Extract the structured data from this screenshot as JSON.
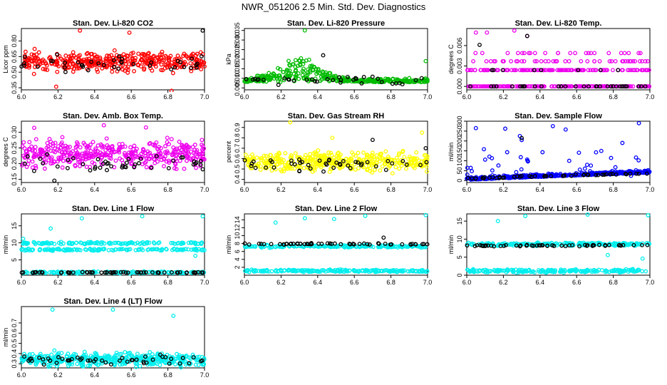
{
  "figure": {
    "title": "NWR_051206  2.5 Min. Std. Dev. Diagnostics"
  },
  "chart_data": [
    {
      "type": "scatter",
      "title": "Stan. Dev. Li-820 CO2",
      "ylabel": "Licor ppm",
      "xlim": [
        6.0,
        7.0
      ],
      "ylim": [
        0.33,
        0.92
      ],
      "xticks": [
        "6.0",
        "6.2",
        "6.4",
        "6.6",
        "6.8",
        "7.0"
      ],
      "yticks": [
        "0.35",
        "0.50",
        "0.65",
        "0.80"
      ],
      "color": "#ff0000",
      "series": [
        {
          "name": "all",
          "pattern": "band",
          "n": 400,
          "seed": 11,
          "base": 0.6,
          "spread": 0.13,
          "outliers": [
            [
              6.32,
              0.9
            ],
            [
              6.59,
              0.88
            ],
            [
              6.82,
              0.32
            ],
            [
              6.19,
              0.36
            ]
          ]
        },
        {
          "name": "highlighted",
          "pattern": "band",
          "n": 40,
          "seed": 12,
          "base": 0.58,
          "spread": 0.12,
          "dark": true,
          "outliers": [
            [
              6.99,
              0.9
            ]
          ]
        }
      ]
    },
    {
      "type": "scatter",
      "title": "Stan. Dev. Li-820 Pressure",
      "ylabel": "kPa",
      "xlim": [
        6.0,
        7.0
      ],
      "ylim": [
        0.004,
        0.036
      ],
      "xticks": [
        "6.0",
        "6.2",
        "6.4",
        "6.6",
        "6.8",
        "7.0"
      ],
      "yticks": [
        "0.005",
        "0.010",
        "0.015",
        "0.020",
        "0.025",
        "0.030",
        "0.035"
      ],
      "color": "#00bb00",
      "series": [
        {
          "name": "all",
          "pattern": "hump",
          "n": 380,
          "seed": 21,
          "base": 0.008,
          "peak": 0.012,
          "center": 6.3,
          "width": 0.16,
          "spread": 0.005,
          "outliers": [
            [
              6.33,
              0.035
            ],
            [
              6.99,
              0.019
            ]
          ]
        },
        {
          "name": "highlighted",
          "pattern": "band",
          "n": 35,
          "seed": 22,
          "base": 0.009,
          "spread": 0.003,
          "dark": true,
          "outliers": [
            [
              6.43,
              0.022
            ]
          ]
        }
      ]
    },
    {
      "type": "scatter",
      "title": "Stan. Dev. Li-820 Temp.",
      "ylabel": "degrees C",
      "xlim": [
        6.0,
        7.0
      ],
      "ylim": [
        -0.0005,
        0.0085
      ],
      "xticks": [
        "6.0",
        "6.2",
        "6.4",
        "6.6",
        "6.8",
        "7.0"
      ],
      "yticks": [
        "0.000",
        "0.003",
        "0.006"
      ],
      "color": "#ee00ee",
      "series": [
        {
          "name": "all",
          "pattern": "levels",
          "n": 420,
          "seed": 31,
          "levels": [
            0.0,
            0.0024,
            0.0037,
            0.0049
          ],
          "weights": [
            0.5,
            0.32,
            0.12,
            0.06
          ],
          "outliers": [
            [
              6.26,
              0.0082
            ],
            [
              6.33,
              0.0074
            ],
            [
              6.05,
              0.0079
            ],
            [
              6.11,
              0.0079
            ]
          ]
        },
        {
          "name": "highlighted",
          "pattern": "levels",
          "n": 40,
          "seed": 32,
          "levels": [
            0.0,
            0.0024
          ],
          "weights": [
            0.75,
            0.25
          ],
          "dark": true,
          "outliers": [
            [
              6.33,
              0.0074
            ],
            [
              6.07,
              0.0061
            ]
          ]
        }
      ]
    },
    {
      "type": "scatter",
      "title": "Stan. Dev. Amb. Box Temp.",
      "ylabel": "degrees C",
      "xlim": [
        6.0,
        7.0
      ],
      "ylim": [
        0.14,
        0.335
      ],
      "xticks": [
        "6.0",
        "6.2",
        "6.4",
        "6.6",
        "6.8",
        "7.0"
      ],
      "yticks": [
        "0.15",
        "0.20",
        "0.25",
        "0.30"
      ],
      "color": "#ee00ee",
      "series": [
        {
          "name": "all",
          "pattern": "band",
          "n": 420,
          "seed": 41,
          "base": 0.23,
          "spread": 0.06,
          "outliers": [
            [
              6.45,
              0.322
            ],
            [
              6.07,
              0.314
            ],
            [
              6.68,
              0.315
            ]
          ]
        },
        {
          "name": "highlighted",
          "pattern": "band",
          "n": 45,
          "seed": 42,
          "base": 0.2,
          "spread": 0.035,
          "dark": true,
          "outliers": [
            [
              6.18,
              0.146
            ]
          ]
        }
      ]
    },
    {
      "type": "scatter",
      "title": "Stan. Dev. Gas Stream RH",
      "ylabel": "percent",
      "xlim": [
        6.0,
        7.0
      ],
      "ylim": [
        0.37,
        0.96
      ],
      "xticks": [
        "6.0",
        "6.2",
        "6.4",
        "6.6",
        "6.8",
        "7.0"
      ],
      "yticks": [
        "0.4",
        "0.5",
        "0.6",
        "0.7",
        "0.8",
        "0.9"
      ],
      "color": "#ffff00",
      "series": [
        {
          "name": "all",
          "pattern": "band",
          "n": 420,
          "seed": 51,
          "base": 0.57,
          "spread": 0.13,
          "outliers": [
            [
              6.25,
              0.95
            ],
            [
              6.97,
              0.85
            ],
            [
              6.48,
              0.8
            ]
          ]
        },
        {
          "name": "highlighted",
          "pattern": "band",
          "n": 45,
          "seed": 52,
          "base": 0.55,
          "spread": 0.09,
          "dark": true,
          "outliers": [
            [
              6.7,
              0.78
            ],
            [
              6.99,
              0.7
            ]
          ]
        }
      ]
    },
    {
      "type": "scatter",
      "title": "Stan. Dev. Sample Flow",
      "ylabel": "ml/min",
      "xlim": [
        6.0,
        7.0
      ],
      "ylim": [
        -10,
        300
      ],
      "xticks": [
        "6.0",
        "6.2",
        "6.4",
        "6.6",
        "6.8",
        "7.0"
      ],
      "yticks": [
        "0",
        "50",
        "100",
        "150",
        "200",
        "250",
        "300"
      ],
      "color": "#0000ff",
      "series": [
        {
          "name": "all",
          "pattern": "ramp",
          "n": 420,
          "seed": 61,
          "from": 4,
          "to": 40,
          "spread": 16,
          "sparse": 40,
          "sparseMax": 140,
          "outliers": [
            [
              6.05,
              265
            ],
            [
              6.21,
              262
            ],
            [
              6.29,
              225
            ],
            [
              6.47,
              275
            ],
            [
              6.54,
              258
            ],
            [
              6.94,
              290
            ],
            [
              6.85,
              190
            ],
            [
              6.3,
              205
            ]
          ]
        },
        {
          "name": "highlighted",
          "pattern": "ramp",
          "n": 50,
          "seed": 62,
          "from": 8,
          "to": 35,
          "spread": 10,
          "dark": true,
          "outliers": [
            [
              6.3,
              215
            ]
          ]
        }
      ]
    },
    {
      "type": "scatter",
      "title": "Stan. Dev. Line 1 Flow",
      "ylabel": "ml/min",
      "xlim": [
        6.0,
        7.0
      ],
      "ylim": [
        0.5,
        18.5
      ],
      "xticks": [
        "6.0",
        "6.2",
        "6.4",
        "6.6",
        "6.8",
        "7.0"
      ],
      "yticks": [
        "5",
        "10",
        "15"
      ],
      "color": "#00eeee",
      "series": [
        {
          "name": "all",
          "pattern": "stripes",
          "n": 420,
          "seed": 71,
          "levels": [
            8.0,
            9.9,
            1.3
          ],
          "spread": 0.45,
          "outliers": [
            [
              6.16,
              14.2
            ],
            [
              6.33,
              17.2
            ],
            [
              6.66,
              17.8
            ],
            [
              6.99,
              17.8
            ],
            [
              6.01,
              11.2
            ],
            [
              6.95,
              6.2
            ]
          ]
        },
        {
          "name": "highlighted",
          "pattern": "stripes",
          "n": 60,
          "seed": 72,
          "levels": [
            1.3
          ],
          "spread": 0.15,
          "dark": true,
          "outliers": []
        }
      ]
    },
    {
      "type": "scatter",
      "title": "Stan. Dev. Line 2 Flow",
      "ylabel": "ml/min",
      "xlim": [
        6.0,
        7.0
      ],
      "ylim": [
        0,
        15.5
      ],
      "xticks": [
        "6.0",
        "6.2",
        "6.4",
        "6.6",
        "6.8",
        "7.0"
      ],
      "yticks": [
        "2",
        "4",
        "6",
        "8",
        "10",
        "12",
        "14"
      ],
      "color": "#00eeee",
      "series": [
        {
          "name": "all",
          "pattern": "stripes",
          "n": 420,
          "seed": 81,
          "levels": [
            7.3,
            1.1
          ],
          "spread": 0.45,
          "outliers": [
            [
              6.17,
              13.3
            ],
            [
              6.33,
              14.4
            ],
            [
              6.66,
              15.0
            ],
            [
              6.99,
              15.2
            ],
            [
              6.49,
              14.2
            ]
          ]
        },
        {
          "name": "highlighted",
          "pattern": "stripes",
          "n": 55,
          "seed": 82,
          "levels": [
            7.9
          ],
          "spread": 0.25,
          "dark": true,
          "outliers": [
            [
              6.76,
              9.5
            ]
          ]
        }
      ]
    },
    {
      "type": "scatter",
      "title": "Stan. Dev. Line 3 Flow",
      "ylabel": "ml/min",
      "xlim": [
        6.0,
        7.0
      ],
      "ylim": [
        0,
        17
      ],
      "xticks": [
        "6.0",
        "6.2",
        "6.4",
        "6.6",
        "6.8",
        "7.0"
      ],
      "yticks": [
        "0",
        "5",
        "10",
        "15"
      ],
      "color": "#00eeee",
      "series": [
        {
          "name": "all",
          "pattern": "stripes",
          "n": 420,
          "seed": 91,
          "levels": [
            8.6,
            1.2
          ],
          "spread": 0.6,
          "outliers": [
            [
              6.17,
              15.0
            ],
            [
              6.32,
              16.4
            ],
            [
              6.66,
              16.8
            ],
            [
              6.99,
              16.6
            ],
            [
              6.96,
              4.6
            ],
            [
              6.77,
              5.6
            ]
          ]
        },
        {
          "name": "highlighted",
          "pattern": "stripes",
          "n": 55,
          "seed": 92,
          "levels": [
            8.2
          ],
          "spread": 0.35,
          "dark": true,
          "outliers": []
        }
      ]
    },
    {
      "type": "scatter",
      "title": "Stan. Dev. Line 4 (LT) Flow",
      "ylabel": "ml/min",
      "xlim": [
        6.0,
        7.0
      ],
      "ylim": [
        0.26,
        0.86
      ],
      "xticks": [
        "6.0",
        "6.2",
        "6.4",
        "6.6",
        "6.8",
        "7.0"
      ],
      "yticks": [
        "0.3",
        "0.4",
        "0.5",
        "0.6",
        "0.7"
      ],
      "color": "#00eeee",
      "series": [
        {
          "name": "all",
          "pattern": "band",
          "n": 420,
          "seed": 101,
          "base": 0.345,
          "spread": 0.09,
          "outliers": [
            [
              6.17,
              0.83
            ],
            [
              6.5,
              0.83
            ],
            [
              6.83,
              0.77
            ],
            [
              6.18,
              0.43
            ]
          ]
        },
        {
          "name": "highlighted",
          "pattern": "band",
          "n": 50,
          "seed": 102,
          "base": 0.34,
          "spread": 0.06,
          "dark": true,
          "outliers": []
        }
      ]
    }
  ]
}
